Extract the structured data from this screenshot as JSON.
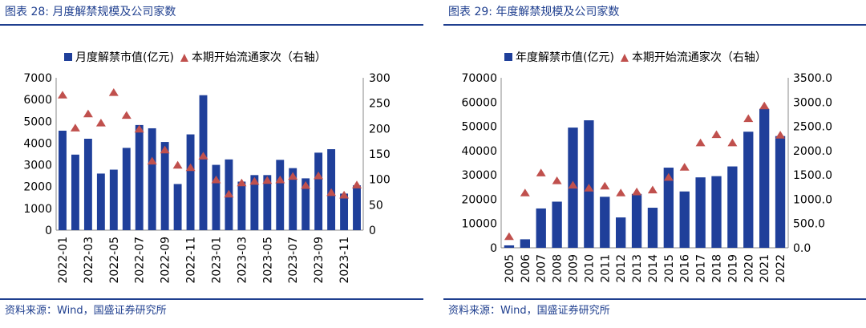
{
  "colors": {
    "bar": "#1f3f9a",
    "marker": "#c0504d",
    "accent": "#1f3f8f"
  },
  "panels": [
    {
      "title": "图表 28:  月度解禁规模及公司家数",
      "source": "资料来源：Wind，国盛证券研究所",
      "chart_data": {
        "type": "bar",
        "categories": [
          "2022-01",
          "2022-02",
          "2022-03",
          "2022-04",
          "2022-05",
          "2022-06",
          "2022-07",
          "2022-08",
          "2022-09",
          "2022-10",
          "2022-11",
          "2022-12",
          "2023-01",
          "2023-02",
          "2023-03",
          "2023-04",
          "2023-05",
          "2023-06",
          "2023-07",
          "2023-08",
          "2023-09",
          "2023-10",
          "2023-11",
          "2023-12"
        ],
        "x_tick_labels": [
          "2022-01",
          "",
          "2022-03",
          "",
          "2022-05",
          "",
          "2022-07",
          "",
          "2022-09",
          "",
          "2022-11",
          "",
          "2023-01",
          "",
          "2023-03",
          "",
          "2023-05",
          "",
          "2023-07",
          "",
          "2023-09",
          "",
          "2023-11",
          ""
        ],
        "series": [
          {
            "name": "月度解禁市值(亿元)",
            "type": "bar",
            "axis": "left",
            "values": [
              4570,
              3470,
              4200,
              2600,
              2780,
              3780,
              4830,
              4680,
              4050,
              2120,
              4400,
              6200,
              3000,
              3250,
              2230,
              2530,
              2530,
              3230,
              2850,
              2380,
              3560,
              3720,
              1680,
              2060
            ]
          },
          {
            "name": "本期开始流通家次（右轴）",
            "type": "marker",
            "axis": "right",
            "values": [
              265,
              200,
              228,
              210,
              270,
              225,
              198,
              135,
              157,
              127,
              122,
              145,
              98,
              70,
              92,
              95,
              97,
              98,
              105,
              87,
              106,
              73,
              68,
              88
            ]
          }
        ],
        "ylim_left": [
          0,
          7000
        ],
        "yticks_left": [
          "0",
          "1000",
          "2000",
          "3000",
          "4000",
          "5000",
          "6000",
          "7000"
        ],
        "ylim_right": [
          0,
          300
        ],
        "yticks_right": [
          "0",
          "50",
          "100",
          "150",
          "200",
          "250",
          "300"
        ],
        "legend_position": "top"
      }
    },
    {
      "title": "图表 29:  年度解禁规模及公司家数",
      "source": "资料来源：Wind，国盛证券研究所",
      "chart_data": {
        "type": "bar",
        "categories": [
          "2005",
          "2006",
          "2007",
          "2008",
          "2009",
          "2010",
          "2011",
          "2012",
          "2013",
          "2014",
          "2015",
          "2016",
          "2017",
          "2018",
          "2019",
          "2020",
          "2021",
          "2022"
        ],
        "x_tick_labels": [
          "2005",
          "2006",
          "2007",
          "2008",
          "2009",
          "2010",
          "2011",
          "2012",
          "2013",
          "2014",
          "2015",
          "2016",
          "2017",
          "2018",
          "2019",
          "2020",
          "2021",
          "2022"
        ],
        "series": [
          {
            "name": "年度解禁市值(亿元)",
            "type": "bar",
            "axis": "left",
            "values": [
              1000,
              3500,
              16200,
              19000,
              49500,
              52500,
              21000,
              12500,
              22200,
              16500,
              33000,
              23200,
              29000,
              29500,
              33500,
              47800,
              57200,
              46000
            ]
          },
          {
            "name": "本期开始流通家次（右轴）",
            "type": "marker",
            "axis": "right",
            "values": [
              220,
              1120,
              1530,
              1370,
              1280,
              1220,
              1260,
              1120,
              1140,
              1180,
              1440,
              1650,
              2150,
              2320,
              2150,
              2650,
              2910,
              2310
            ]
          }
        ],
        "ylim_left": [
          0,
          70000
        ],
        "yticks_left": [
          "0",
          "10000",
          "20000",
          "30000",
          "40000",
          "50000",
          "60000",
          "70000"
        ],
        "ylim_right": [
          0,
          3500
        ],
        "yticks_right": [
          "0.0",
          "500.0",
          "1000.0",
          "1500.0",
          "2000.0",
          "2500.0",
          "3000.0",
          "3500.0"
        ],
        "legend_position": "top"
      }
    }
  ]
}
